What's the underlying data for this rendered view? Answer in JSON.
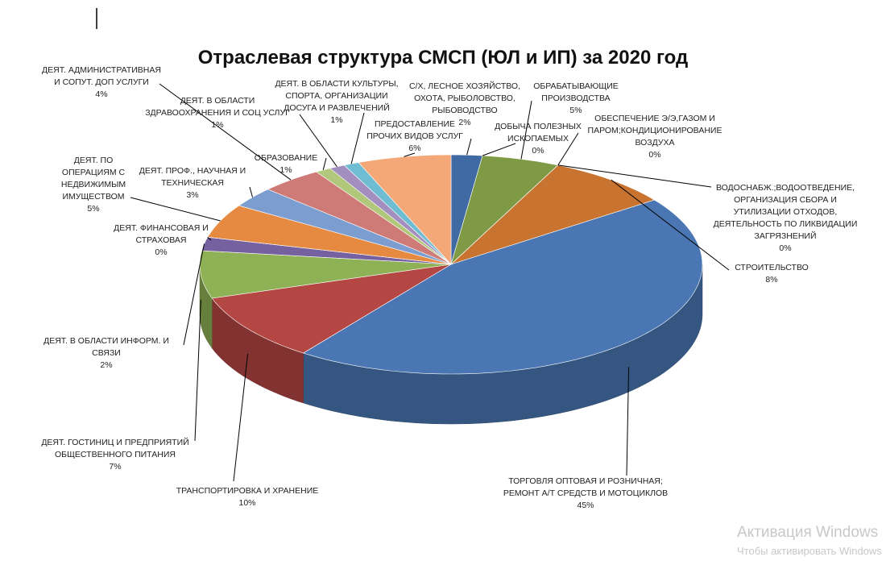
{
  "chart_data": {
    "type": "pie",
    "title": "Отраслевая структура СМСП (ЮЛ и ИП) за 2020 год",
    "categories": [
      "С/Х, ЛЕСНОЕ ХОЗЯЙСТВО, ОХОТА, РЫБОЛОВСТВО, РЫБОВОДСТВО",
      "ДОБЫЧА ПОЛЕЗНЫХ ИСКОПАЕМЫХ",
      "ОБРАБАТЫВАЮЩИЕ ПРОИЗВОДСТВА",
      "ОБЕСПЕЧЕНИЕ Э/Э,ГАЗОМ И ПАРОМ;КОНДИЦИОНИРОВАНИЕ ВОЗДУХА",
      "ВОДОСНАБЖ.;ВОДООТВЕДЕНИЕ, ОРГАНИЗАЦИЯ СБОРА И УТИЛИЗАЦИИ ОТХОДОВ, ДЕЯТЕЛЬНОСТЬ ПО ЛИКВИДАЦИИ ЗАГРЯЗНЕНИЙ",
      "СТРОИТЕЛЬСТВО",
      "ТОРГОВЛЯ ОПТОВАЯ И РОЗНИЧНАЯ; РЕМОНТ А/Т СРЕДСТВ И МОТОЦИКЛОВ",
      "ТРАНСПОРТИРОВКА И ХРАНЕНИЕ",
      "ДЕЯТ. ГОСТИНИЦ И ПРЕДПРИЯТИЙ ОБЩЕСТВЕННОГО ПИТАНИЯ",
      "ДЕЯТ. В ОБЛАСТИ ИНФОРМ. И СВЯЗИ",
      "ДЕЯТ. ФИНАНСОВАЯ И СТРАХОВАЯ",
      "ДЕЯТ. ПО ОПЕРАЦИЯМ С НЕДВИЖИМЫМ ИМУЩЕСТВОМ",
      "ДЕЯТ. ПРОФ., НАУЧНАЯ И ТЕХНИЧЕСКАЯ",
      "ДЕЯТ. АДМИНИСТРАТИВНАЯ И СОПУТ. ДОП УСЛУГИ",
      "ОБРАЗОВАНИЕ",
      "ДЕЯТ. В ОБЛАСТИ ЗДРАВООХРАНЕНИЯ И СОЦ УСЛУГ",
      "ДЕЯТ. В ОБЛАСТИ КУЛЬТУРЫ, СПОРТА, ОРГАНИЗАЦИИ ДОСУГА И РАЗВЛЕЧЕНИЙ",
      "ПРЕДОСТАВЛЕНИЕ ПРОЧИХ ВИДОВ УСЛУГ"
    ],
    "values": [
      2,
      0,
      5,
      0,
      0,
      8,
      45,
      10,
      7,
      2,
      0,
      5,
      3,
      4,
      1,
      1,
      1,
      6
    ],
    "value_labels": [
      "2%",
      "0%",
      "5%",
      "0%",
      "0%",
      "8%",
      "45%",
      "10%",
      "7%",
      "2%",
      "0%",
      "5%",
      "3%",
      "4%",
      "1%",
      "1%",
      "1%",
      "6%"
    ],
    "colors": [
      "#3f6aa3",
      "#a8403d",
      "#7f9a45",
      "#6a5290",
      "#3d98b0",
      "#c8732f",
      "#4a77b3",
      "#b44744",
      "#8fb155",
      "#7560a0",
      "#46a7c0",
      "#e58a40",
      "#7c9dd0",
      "#ce7a77",
      "#b1c87c",
      "#a28fc0",
      "#6fbdd2",
      "#f4a878"
    ]
  },
  "watermark": {
    "title": "Активация Windows",
    "subtitle": "Чтобы активировать Windows"
  }
}
